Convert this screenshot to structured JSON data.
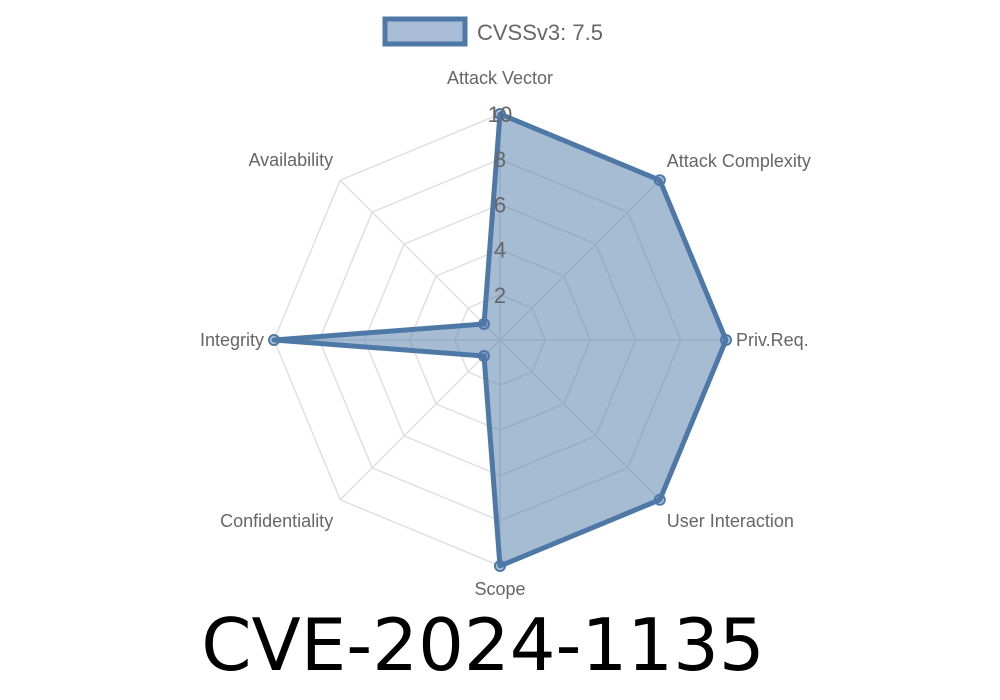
{
  "chart_data": {
    "type": "radar",
    "title": "CVE-2024-1135",
    "axes": [
      "Attack Vector",
      "Attack Complexity",
      "Priv.Req.",
      "User Interaction",
      "Scope",
      "Confidentiality",
      "Integrity",
      "Availability"
    ],
    "series": [
      {
        "name": "CVSSv3: 7.5",
        "values": [
          10,
          10,
          10,
          10,
          10,
          1,
          10,
          1
        ]
      }
    ],
    "rlim": [
      0,
      10
    ],
    "ticks": [
      "2",
      "4",
      "6",
      "8",
      "10"
    ],
    "tick_values": [
      2,
      4,
      6,
      8,
      10
    ],
    "grid": true,
    "legend_placement": "top",
    "colors": {
      "stroke": "#4e79a7",
      "fill": "rgba(78,121,167,0.5)",
      "grid": "#e0e0e0"
    }
  }
}
